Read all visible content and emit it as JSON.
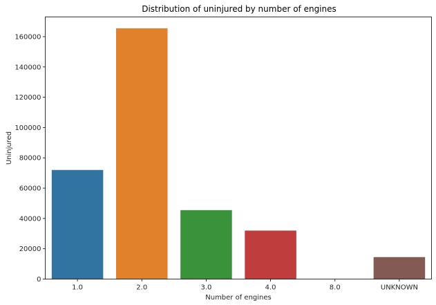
{
  "chart_data": {
    "type": "bar",
    "title": "Distribution of uninjured by number of engines",
    "xlabel": "Number of engines",
    "ylabel": "Uninjured",
    "categories": [
      "1.0",
      "2.0",
      "3.0",
      "4.0",
      "8.0",
      "UNKNOWN"
    ],
    "values": [
      72000,
      165500,
      45500,
      32000,
      0,
      14500
    ],
    "colors": [
      "#3274a1",
      "#e1812c",
      "#3a923a",
      "#c03d3e",
      "#9372b2",
      "#845b53"
    ],
    "ylim": [
      0,
      173000
    ],
    "yticks": [
      0,
      20000,
      40000,
      60000,
      80000,
      100000,
      120000,
      140000,
      160000
    ],
    "grid": false,
    "legend": "none"
  }
}
